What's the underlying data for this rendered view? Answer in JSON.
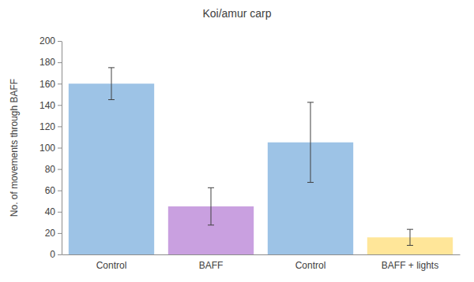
{
  "chart_data": {
    "type": "bar",
    "title": "Koi/amur carp",
    "y_label": "No. of movements through BAFF",
    "categories": [
      "Control",
      "BAFF",
      "Control",
      "BAFF + lights"
    ],
    "values": [
      160,
      45,
      105,
      16
    ],
    "errors": [
      15,
      17.5,
      37.5,
      7.5
    ],
    "colors": [
      "#9dc3e6",
      "#c9a0e0",
      "#9dc3e6",
      "#ffe699"
    ],
    "ylim": [
      0,
      200
    ],
    "yticks": [
      0,
      20,
      40,
      60,
      80,
      100,
      120,
      140,
      160,
      180,
      200
    ],
    "grid": false
  }
}
